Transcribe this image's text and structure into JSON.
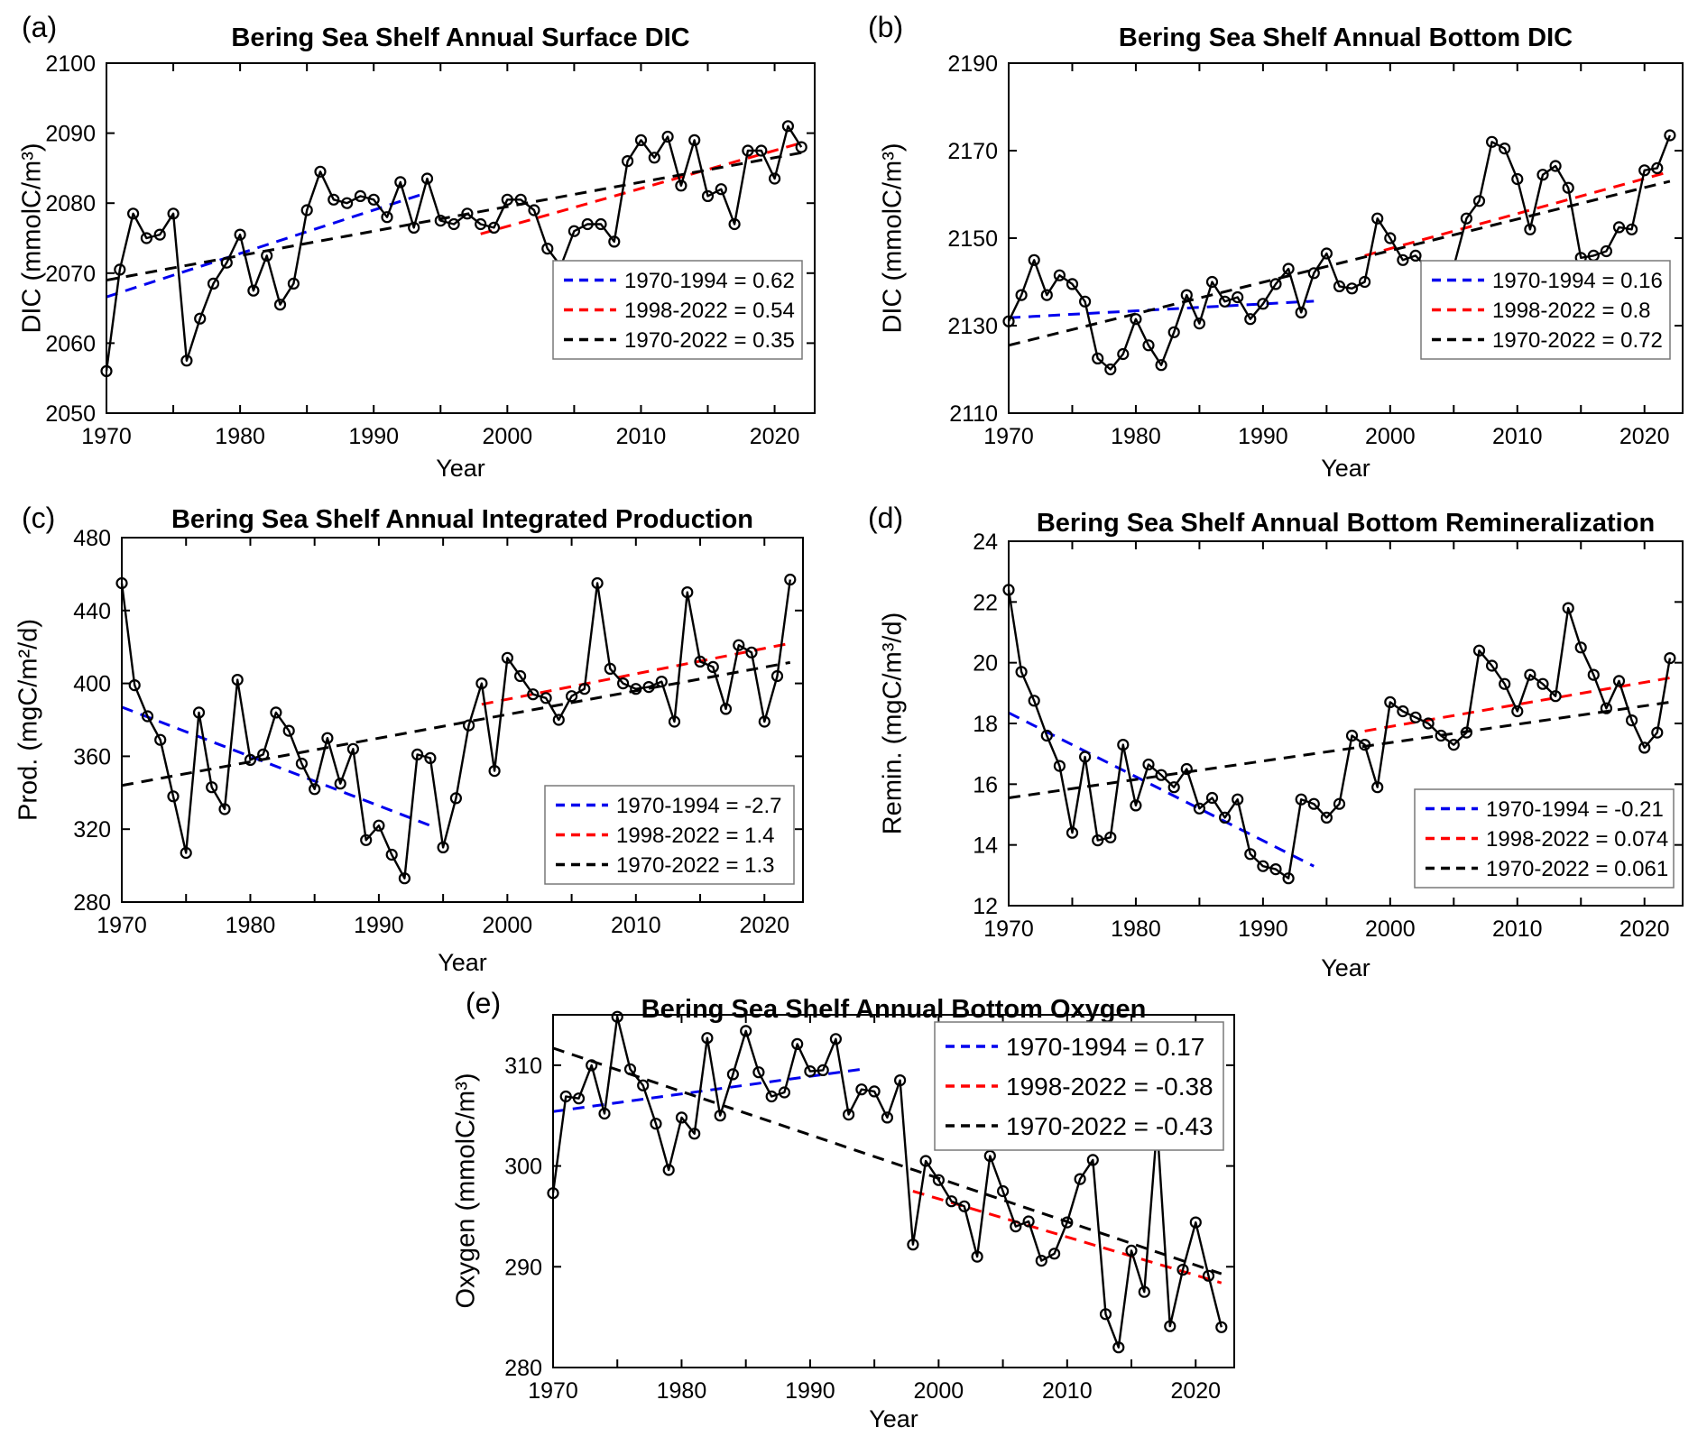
{
  "figure": {
    "background": "#ffffff",
    "series_color": "#000000"
  },
  "years": [
    1970,
    1971,
    1972,
    1973,
    1974,
    1975,
    1976,
    1977,
    1978,
    1979,
    1980,
    1981,
    1982,
    1983,
    1984,
    1985,
    1986,
    1987,
    1988,
    1989,
    1990,
    1991,
    1992,
    1993,
    1994,
    1995,
    1996,
    1997,
    1998,
    1999,
    2000,
    2001,
    2002,
    2003,
    2004,
    2005,
    2006,
    2007,
    2008,
    2009,
    2010,
    2011,
    2012,
    2013,
    2014,
    2015,
    2016,
    2017,
    2018,
    2019,
    2020,
    2021,
    2022
  ],
  "chart_data": [
    {
      "id": "a",
      "panel_label": "(a)",
      "type": "line",
      "title": "Bering Sea Shelf Annual Surface DIC",
      "xlabel": "Year",
      "ylabel": "DIC (mmolC/m³)",
      "xlim": [
        1970,
        2023
      ],
      "ylim": [
        2050,
        2100
      ],
      "xticks": [
        1970,
        1980,
        1990,
        2000,
        2010,
        2020
      ],
      "xtick_minor_step": 5,
      "yticks": [
        2050,
        2060,
        2070,
        2080,
        2090,
        2100
      ],
      "values": [
        2056,
        2070.5,
        2078.5,
        2075,
        2075.5,
        2078.5,
        2057.5,
        2063.5,
        2068.5,
        2071.5,
        2075.5,
        2067.5,
        2072.5,
        2065.5,
        2068.5,
        2079,
        2084.5,
        2080.5,
        2080,
        2081,
        2080.5,
        2078,
        2083,
        2076.5,
        2083.5,
        2077.5,
        2077,
        2078.5,
        2077,
        2076.5,
        2080.5,
        2080.5,
        2079,
        2073.5,
        2071,
        2076,
        2077,
        2077,
        2074.5,
        2086,
        2089,
        2086.5,
        2089.5,
        2082.5,
        2089,
        2081,
        2082,
        2077,
        2087.5,
        2087.5,
        2083.5,
        2091,
        2088
      ],
      "trends": [
        {
          "label": "1970-1994 = 0.62",
          "slope": 0.62,
          "color": "#0000EE",
          "x": [
            1970,
            1994
          ],
          "y": [
            2066.6,
            2081.5
          ]
        },
        {
          "label": "1998-2022 = 0.54",
          "slope": 0.54,
          "color": "#FF0000",
          "x": [
            1998,
            2022
          ],
          "y": [
            2075.6,
            2088.6
          ]
        },
        {
          "label": "1970-2022 = 0.35",
          "slope": 0.35,
          "color": "#000000",
          "x": [
            1970,
            2022
          ],
          "y": [
            2069,
            2087.2
          ]
        }
      ],
      "legend": {
        "position": "bottom-right"
      }
    },
    {
      "id": "b",
      "panel_label": "(b)",
      "type": "line",
      "title": "Bering Sea Shelf Annual Bottom DIC",
      "xlabel": "Year",
      "ylabel": "DIC (mmolC/m³)",
      "xlim": [
        1970,
        2023
      ],
      "ylim": [
        2110,
        2190
      ],
      "xticks": [
        1970,
        1980,
        1990,
        2000,
        2010,
        2020
      ],
      "xtick_minor_step": 5,
      "yticks": [
        2110,
        2130,
        2150,
        2170,
        2190
      ],
      "values": [
        2131,
        2137,
        2145,
        2137,
        2141.5,
        2139.5,
        2135.5,
        2122.5,
        2120,
        2123.5,
        2131.5,
        2125.5,
        2121,
        2128.5,
        2137,
        2130.5,
        2140,
        2135.5,
        2136.5,
        2131.5,
        2135,
        2139.5,
        2143,
        2133,
        2142,
        2146.5,
        2139,
        2138.5,
        2140,
        2154.5,
        2150,
        2145,
        2146,
        2143,
        2137.5,
        2143.5,
        2154.5,
        2158.5,
        2172,
        2170.5,
        2163.5,
        2152,
        2164.5,
        2166.5,
        2161.5,
        2145.5,
        2146,
        2147,
        2152.5,
        2152,
        2165.5,
        2166,
        2173.5
      ],
      "trends": [
        {
          "label": "1970-1994 = 0.16",
          "slope": 0.16,
          "color": "#0000EE",
          "x": [
            1970,
            1994
          ],
          "y": [
            2131.8,
            2135.6
          ]
        },
        {
          "label": "1998-2022 = 0.8",
          "slope": 0.8,
          "color": "#FF0000",
          "x": [
            1998,
            2022
          ],
          "y": [
            2146,
            2165.2
          ]
        },
        {
          "label": "1970-2022 = 0.72",
          "slope": 0.72,
          "color": "#000000",
          "x": [
            1970,
            2022
          ],
          "y": [
            2125.5,
            2163
          ]
        }
      ],
      "legend": {
        "position": "bottom-right"
      }
    },
    {
      "id": "c",
      "panel_label": "(c)",
      "type": "line",
      "title": "Bering Sea Shelf Annual Integrated Production",
      "xlabel": "Year",
      "ylabel": "Prod. (mgC/m²/d)",
      "xlim": [
        1970,
        2023
      ],
      "ylim": [
        280,
        480
      ],
      "xticks": [
        1970,
        1980,
        1990,
        2000,
        2010,
        2020
      ],
      "xtick_minor_step": 5,
      "yticks": [
        280,
        320,
        360,
        400,
        440,
        480
      ],
      "values": [
        455,
        399,
        382,
        369,
        338,
        307,
        384,
        343,
        331,
        402,
        358,
        361,
        384,
        374,
        356,
        342,
        370,
        345,
        364,
        314,
        322,
        306,
        293,
        361,
        359,
        310,
        337,
        377,
        400,
        352,
        414,
        404,
        394,
        392,
        380,
        393,
        397,
        455,
        408,
        400,
        397,
        398,
        401,
        379,
        450,
        412,
        409,
        386,
        421,
        417,
        379,
        404,
        457
      ],
      "trends": [
        {
          "label": "1970-1994 = -2.7",
          "slope": -2.7,
          "color": "#0000EE",
          "x": [
            1970,
            1994
          ],
          "y": [
            387,
            322
          ]
        },
        {
          "label": "1998-2022 = 1.4",
          "slope": 1.4,
          "color": "#FF0000",
          "x": [
            1998,
            2022
          ],
          "y": [
            388.5,
            422
          ]
        },
        {
          "label": "1970-2022 = 1.3",
          "slope": 1.3,
          "color": "#000000",
          "x": [
            1970,
            2022
          ],
          "y": [
            344,
            411.5
          ]
        }
      ],
      "legend": {
        "position": "bottom-right"
      }
    },
    {
      "id": "d",
      "panel_label": "(d)",
      "type": "line",
      "title": "Bering Sea Shelf Annual Bottom Remineralization",
      "xlabel": "Year",
      "ylabel": "Remin. (mgC/m³/d)",
      "xlim": [
        1970,
        2023
      ],
      "ylim": [
        12,
        24
      ],
      "xticks": [
        1970,
        1980,
        1990,
        2000,
        2010,
        2020
      ],
      "xtick_minor_step": 5,
      "yticks": [
        12,
        14,
        16,
        18,
        20,
        22,
        24
      ],
      "values": [
        22.4,
        19.7,
        18.75,
        17.6,
        16.6,
        14.4,
        16.9,
        14.15,
        14.25,
        17.3,
        15.3,
        16.65,
        16.3,
        15.9,
        16.5,
        15.2,
        15.55,
        14.9,
        15.5,
        13.7,
        13.3,
        13.2,
        12.9,
        15.5,
        15.35,
        14.9,
        15.35,
        17.6,
        17.3,
        15.9,
        18.7,
        18.4,
        18.2,
        18,
        17.6,
        17.3,
        17.7,
        20.4,
        19.9,
        19.3,
        18.4,
        19.6,
        19.3,
        18.9,
        21.8,
        20.5,
        19.6,
        18.5,
        19.4,
        18.1,
        17.2,
        17.7,
        20.15
      ],
      "trends": [
        {
          "label": "1970-1994 = -0.21",
          "slope": -0.21,
          "color": "#0000EE",
          "x": [
            1970,
            1994
          ],
          "y": [
            18.35,
            13.3
          ]
        },
        {
          "label": "1998-2022 = 0.074",
          "slope": 0.074,
          "color": "#FF0000",
          "x": [
            1998,
            2022
          ],
          "y": [
            17.75,
            19.5
          ]
        },
        {
          "label": "1970-2022 = 0.061",
          "slope": 0.061,
          "color": "#000000",
          "x": [
            1970,
            2022
          ],
          "y": [
            15.55,
            18.7
          ]
        }
      ],
      "legend": {
        "position": "bottom-right"
      }
    },
    {
      "id": "e",
      "panel_label": "(e)",
      "type": "line",
      "title": "Bering Sea Shelf Annual Bottom Oxygen",
      "xlabel": "Year",
      "ylabel": "Oxygen (mmolC/m³)",
      "xlim": [
        1970,
        2023
      ],
      "ylim": [
        280,
        315
      ],
      "xticks": [
        1970,
        1980,
        1990,
        2000,
        2010,
        2020
      ],
      "xtick_minor_step": 5,
      "yticks": [
        280,
        290,
        300,
        310
      ],
      "values": [
        297.3,
        306.9,
        306.7,
        310,
        305.2,
        314.8,
        309.6,
        308,
        304.2,
        299.6,
        304.8,
        303.2,
        312.7,
        305,
        309.1,
        313.4,
        309.3,
        306.9,
        307.3,
        312.1,
        309.4,
        309.5,
        312.6,
        305.1,
        307.6,
        307.4,
        304.8,
        308.5,
        292.2,
        300.5,
        298.6,
        296.5,
        296,
        291,
        301,
        297.5,
        294,
        294.5,
        290.6,
        291.3,
        294.4,
        298.7,
        300.6,
        285.3,
        282,
        291.6,
        287.5,
        304,
        284.1,
        289.7,
        294.4,
        289.1,
        284
      ],
      "trends": [
        {
          "label": "1970-1994 = 0.17",
          "slope": 0.17,
          "color": "#0000EE",
          "x": [
            1970,
            1994
          ],
          "y": [
            305.4,
            309.6
          ]
        },
        {
          "label": "1998-2022 = -0.38",
          "slope": -0.38,
          "color": "#FF0000",
          "x": [
            1998,
            2022
          ],
          "y": [
            297.5,
            288.4
          ]
        },
        {
          "label": "1970-2022 = -0.43",
          "slope": -0.43,
          "color": "#000000",
          "x": [
            1970,
            2022
          ],
          "y": [
            311.7,
            289.3
          ]
        }
      ],
      "legend": {
        "position": "top-right"
      }
    }
  ]
}
